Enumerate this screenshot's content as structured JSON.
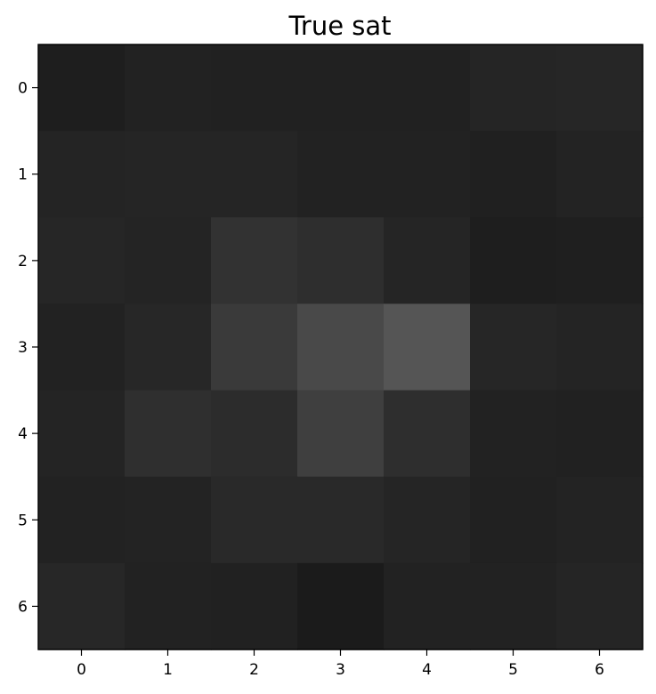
{
  "chart_data": {
    "type": "heatmap",
    "title": "True sat",
    "xlabel": "",
    "ylabel": "",
    "colormap": "gray",
    "color_range": [
      0,
      1
    ],
    "x_ticks": [
      "0",
      "1",
      "2",
      "3",
      "4",
      "5",
      "6"
    ],
    "y_ticks": [
      "0",
      "1",
      "2",
      "3",
      "4",
      "5",
      "6"
    ],
    "rows": 7,
    "cols": 7,
    "values": [
      [
        0.118,
        0.133,
        0.129,
        0.129,
        0.129,
        0.145,
        0.149
      ],
      [
        0.141,
        0.145,
        0.145,
        0.133,
        0.133,
        0.125,
        0.137
      ],
      [
        0.149,
        0.141,
        0.196,
        0.18,
        0.145,
        0.118,
        0.122
      ],
      [
        0.133,
        0.153,
        0.227,
        0.286,
        0.333,
        0.149,
        0.141
      ],
      [
        0.141,
        0.184,
        0.173,
        0.247,
        0.18,
        0.133,
        0.129
      ],
      [
        0.133,
        0.137,
        0.161,
        0.161,
        0.145,
        0.129,
        0.137
      ],
      [
        0.153,
        0.133,
        0.129,
        0.106,
        0.133,
        0.133,
        0.145
      ]
    ]
  }
}
